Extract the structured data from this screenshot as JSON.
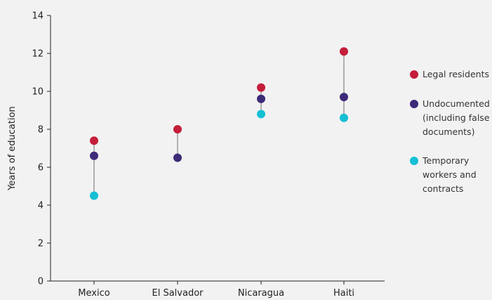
{
  "chart_data": {
    "type": "scatter",
    "categories": [
      "Mexico",
      "El Salvador",
      "Nicaragua",
      "Haiti"
    ],
    "ylabel": "Years of education",
    "ylim": [
      0,
      14
    ],
    "yticks": [
      0,
      2,
      4,
      6,
      8,
      10,
      12,
      14
    ],
    "grid": false,
    "legend_position": "right",
    "series": [
      {
        "name": "Legal residents",
        "color": "#c41e3a",
        "values": [
          7.4,
          8.0,
          10.2,
          12.1
        ]
      },
      {
        "name": "Undocumented (including false documents)",
        "color": "#3d2a78",
        "values": [
          6.6,
          6.5,
          9.6,
          9.7
        ]
      },
      {
        "name": "Temporary workers and contracts",
        "color": "#15bfd4",
        "values": [
          4.5,
          null,
          8.8,
          8.6
        ]
      }
    ],
    "legend_lines": [
      [
        "Legal residents"
      ],
      [
        "Undocumented",
        "(including false",
        "documents)"
      ],
      [
        "Temporary",
        "workers and",
        "contracts"
      ]
    ],
    "connector_color": "#b0b0b0",
    "axis_color": "#222222"
  }
}
